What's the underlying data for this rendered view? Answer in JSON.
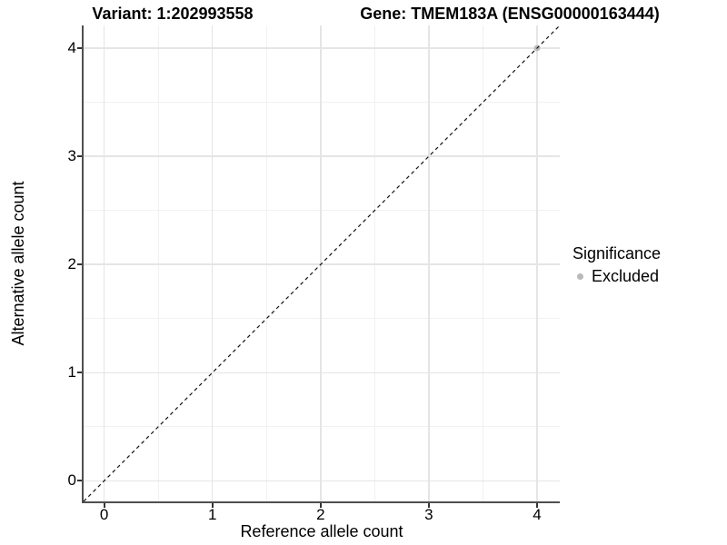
{
  "titles": {
    "variant": "Variant: 1:202993558",
    "gene": "Gene: TMEM183A (ENSG00000163444)"
  },
  "chart_data": {
    "type": "scatter",
    "title": "Variant: 1:202993558   Gene: TMEM183A (ENSG00000163444)",
    "xlabel": "Reference allele count",
    "ylabel": "Alternative allele count",
    "xlim": [
      -0.19,
      4.21
    ],
    "ylim": [
      -0.19,
      4.21
    ],
    "xticks": [
      0,
      1,
      2,
      3,
      4
    ],
    "yticks": [
      0,
      1,
      2,
      3,
      4
    ],
    "minor_xticks": [
      0.5,
      1.5,
      2.5,
      3.5
    ],
    "minor_yticks": [
      0.5,
      1.5,
      2.5,
      3.5
    ],
    "grid": "major and minor gridlines on white background",
    "reference_line": {
      "kind": "identity y=x",
      "style": "dashed",
      "color": "#111111"
    },
    "series": [
      {
        "name": "Excluded",
        "color": "#b9b9b9",
        "points": [
          {
            "x": 4,
            "y": 4
          }
        ]
      }
    ],
    "legend": {
      "position": "right",
      "title": "Significance",
      "entries": [
        {
          "label": "Excluded",
          "color": "#b9b9b9"
        }
      ]
    },
    "colors": {
      "major_grid": "#e5e5e5",
      "minor_grid": "#f1f1f1",
      "axis_line": "#4f4f4f",
      "tick_mark": "#333333",
      "text": "#000000",
      "background": "#ffffff"
    }
  }
}
